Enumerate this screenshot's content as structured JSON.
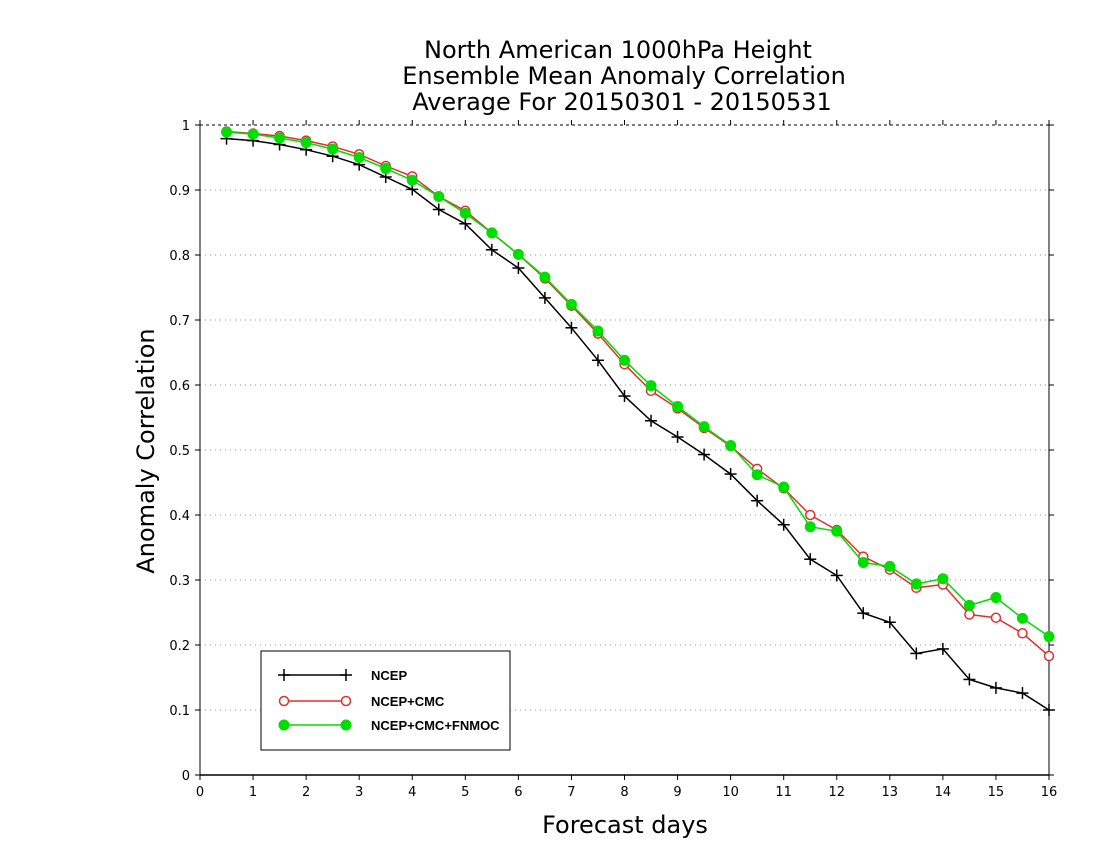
{
  "chart_data": {
    "type": "line",
    "title_lines": [
      "North American 1000hPa Height",
      "Ensemble Mean Anomaly Correlation",
      "Average For 20150301 - 20150531"
    ],
    "xlabel": "Forecast days",
    "ylabel": "Anomaly Correlation",
    "xlim": [
      0,
      16
    ],
    "ylim": [
      0,
      1
    ],
    "xticks": [
      "0",
      "1",
      "2",
      "3",
      "4",
      "5",
      "6",
      "7",
      "8",
      "9",
      "10",
      "11",
      "12",
      "13",
      "14",
      "15",
      "16"
    ],
    "yticks": [
      "0",
      "0.1",
      "0.2",
      "0.3",
      "0.4",
      "0.5",
      "0.6",
      "0.7",
      "0.8",
      "0.9",
      "1"
    ],
    "grid": "horizontal dotted",
    "legend_position": "bottom-left",
    "x": [
      0.5,
      1,
      1.5,
      2,
      2.5,
      3,
      3.5,
      4,
      4.5,
      5,
      5.5,
      6,
      6.5,
      7,
      7.5,
      8,
      8.5,
      9,
      9.5,
      10,
      10.5,
      11,
      11.5,
      12,
      12.5,
      13,
      13.5,
      14,
      14.5,
      15,
      15.5,
      16
    ],
    "series": [
      {
        "name": "NCEP",
        "color": "#000000",
        "marker": "plus",
        "values": [
          0.979,
          0.976,
          0.97,
          0.962,
          0.952,
          0.939,
          0.92,
          0.901,
          0.87,
          0.848,
          0.808,
          0.78,
          0.734,
          0.688,
          0.638,
          0.583,
          0.545,
          0.52,
          0.493,
          0.463,
          0.422,
          0.385,
          0.332,
          0.307,
          0.249,
          0.235,
          0.187,
          0.194,
          0.147,
          0.134,
          0.126,
          0.1
        ]
      },
      {
        "name": "NCEP+CMC",
        "color": "#e03030",
        "marker": "open-circle",
        "values": [
          0.99,
          0.987,
          0.983,
          0.976,
          0.967,
          0.955,
          0.937,
          0.921,
          0.89,
          0.868,
          0.834,
          0.801,
          0.764,
          0.722,
          0.679,
          0.632,
          0.591,
          0.564,
          0.534,
          0.506,
          0.471,
          0.441,
          0.4,
          0.377,
          0.336,
          0.316,
          0.288,
          0.293,
          0.247,
          0.242,
          0.218,
          0.183
        ]
      },
      {
        "name": "NCEP+CMC+FNMOC",
        "color": "#00dd00",
        "marker": "filled-circle",
        "values": [
          0.989,
          0.986,
          0.98,
          0.973,
          0.963,
          0.95,
          0.933,
          0.915,
          0.89,
          0.864,
          0.834,
          0.801,
          0.766,
          0.724,
          0.683,
          0.638,
          0.599,
          0.567,
          0.536,
          0.507,
          0.462,
          0.443,
          0.382,
          0.375,
          0.327,
          0.321,
          0.294,
          0.302,
          0.261,
          0.273,
          0.241,
          0.213
        ]
      }
    ]
  }
}
